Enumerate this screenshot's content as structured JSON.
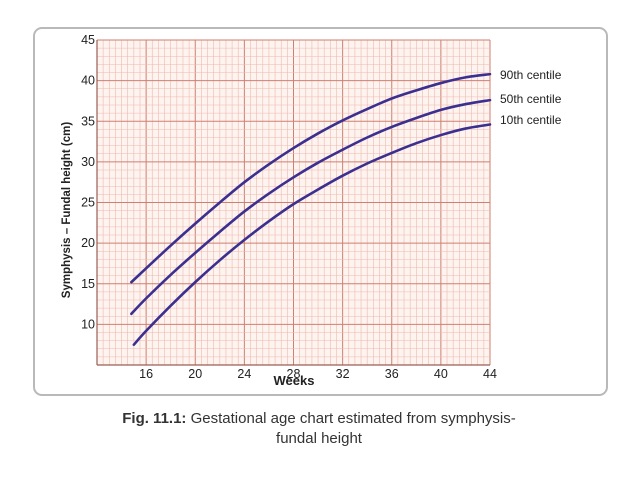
{
  "colors": {
    "curve": "#3b2f8f",
    "grid_minor": "#efb9b0",
    "grid_major": "#cf7f72",
    "plot_background": "#fdf3ef",
    "frame": "#b9b9b9",
    "text": "#222222"
  },
  "caption": {
    "label": "Fig. 11.1:",
    "text_line1": "Gestational age chart estimated from symphysis-",
    "text_line2": "fundal height"
  },
  "chart_data": {
    "type": "line",
    "title": "",
    "xlabel": "Weeks",
    "ylabel": "Symphysis – Fundal height (cm)",
    "xlim": [
      12,
      44
    ],
    "ylim": [
      5,
      45
    ],
    "grid": true,
    "x_ticks": [
      16,
      20,
      24,
      28,
      32,
      36,
      40,
      44
    ],
    "y_ticks": [
      10,
      15,
      20,
      25,
      30,
      35,
      40,
      45
    ],
    "x_tick_labels": [
      "16",
      "20",
      "24",
      "28",
      "32",
      "36",
      "40",
      "44"
    ],
    "y_tick_labels": [
      "10",
      "15",
      "20",
      "25",
      "30",
      "35",
      "40",
      "45"
    ],
    "legend": "right, labels at curve ends",
    "series": [
      {
        "name": "90th centile",
        "x": [
          14.8,
          16,
          18,
          20,
          22,
          24,
          26,
          28,
          30,
          32,
          34,
          36,
          38,
          40,
          42,
          44
        ],
        "y": [
          15.2,
          16.9,
          19.7,
          22.4,
          25.0,
          27.5,
          29.7,
          31.7,
          33.5,
          35.1,
          36.5,
          37.8,
          38.8,
          39.7,
          40.4,
          40.8
        ]
      },
      {
        "name": "50th centile",
        "x": [
          14.8,
          16,
          18,
          20,
          22,
          24,
          26,
          28,
          30,
          32,
          34,
          36,
          38,
          40,
          42,
          44
        ],
        "y": [
          11.3,
          13.2,
          16.1,
          18.8,
          21.4,
          23.9,
          26.1,
          28.1,
          29.9,
          31.5,
          33.0,
          34.3,
          35.4,
          36.4,
          37.1,
          37.6
        ]
      },
      {
        "name": "10th centile",
        "x": [
          15.0,
          16,
          18,
          20,
          22,
          24,
          26,
          28,
          30,
          32,
          34,
          36,
          38,
          40,
          42,
          44
        ],
        "y": [
          7.5,
          9.2,
          12.3,
          15.2,
          17.9,
          20.4,
          22.7,
          24.8,
          26.6,
          28.3,
          29.8,
          31.1,
          32.3,
          33.3,
          34.1,
          34.6
        ]
      }
    ]
  }
}
